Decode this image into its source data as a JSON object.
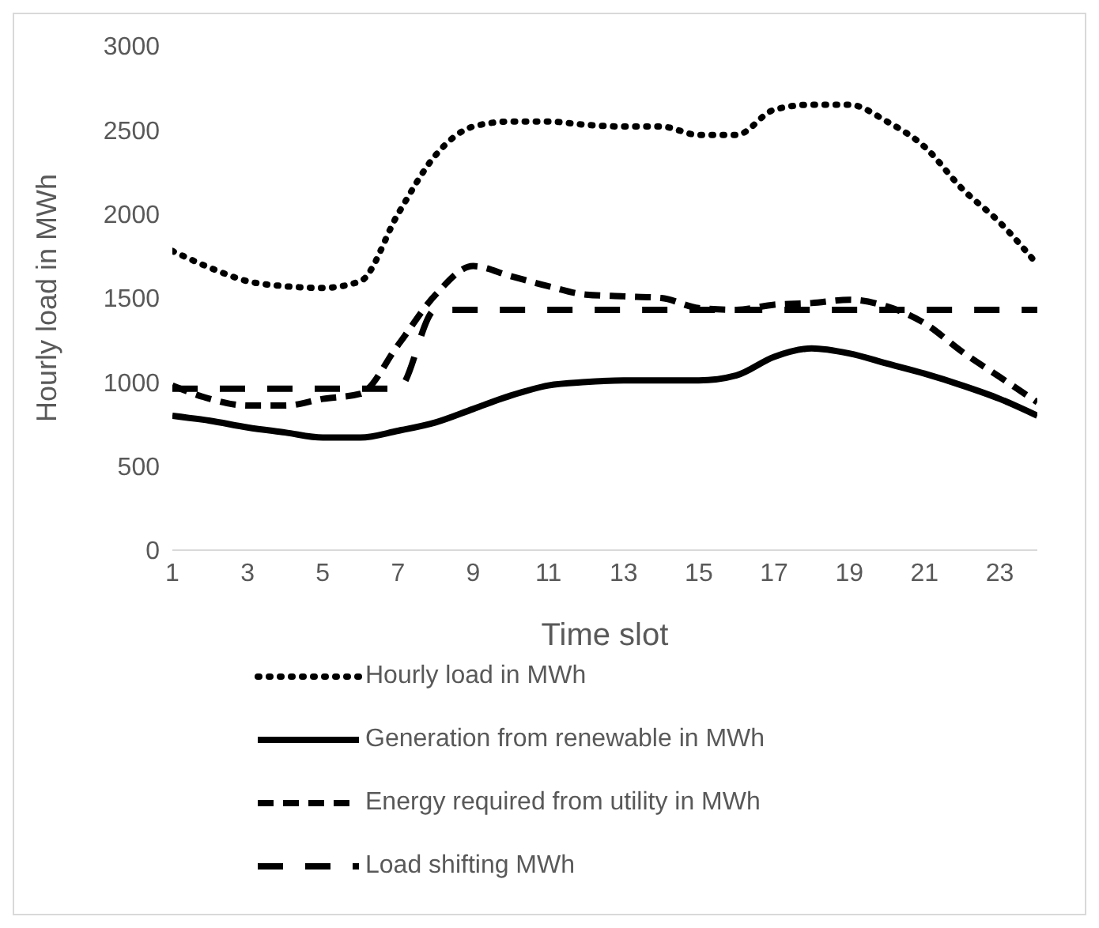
{
  "chart_data": {
    "type": "line",
    "xlabel": "Time slot",
    "ylabel": "Hourly load in MWh",
    "x": [
      1,
      2,
      3,
      4,
      5,
      6,
      7,
      8,
      9,
      10,
      11,
      12,
      13,
      14,
      15,
      16,
      17,
      18,
      19,
      20,
      21,
      22,
      23,
      24
    ],
    "xlim": [
      1,
      24
    ],
    "xticks": [
      1,
      3,
      5,
      7,
      9,
      11,
      13,
      15,
      17,
      19,
      21,
      23
    ],
    "ylim": [
      0,
      3000
    ],
    "yticks": [
      0,
      500,
      1000,
      1500,
      2000,
      2500,
      3000
    ],
    "grid": false,
    "legend": "bottom",
    "marker": "none",
    "series": [
      {
        "name": "Hourly load in MWh",
        "color": "#000000",
        "line_style": "dotted",
        "values": [
          1780,
          1680,
          1600,
          1570,
          1560,
          1600,
          2000,
          2350,
          2520,
          2550,
          2550,
          2530,
          2520,
          2520,
          2470,
          2470,
          2620,
          2650,
          2650,
          2550,
          2400,
          2150,
          1950,
          1700
        ]
      },
      {
        "name": "Generation from renewable in MWh",
        "color": "#000000",
        "line_style": "solid",
        "values": [
          800,
          770,
          730,
          700,
          670,
          670,
          710,
          760,
          840,
          920,
          980,
          1000,
          1010,
          1010,
          1010,
          1040,
          1150,
          1200,
          1170,
          1110,
          1050,
          980,
          900,
          800
        ]
      },
      {
        "name": "Energy required from utility in MWh",
        "color": "#000000",
        "line_style": "dashed",
        "values": [
          980,
          900,
          860,
          860,
          900,
          930,
          1220,
          1520,
          1690,
          1630,
          1570,
          1520,
          1510,
          1500,
          1440,
          1430,
          1460,
          1470,
          1490,
          1450,
          1350,
          1180,
          1030,
          880
        ]
      },
      {
        "name": "Load shifting MWh",
        "color": "#000000",
        "line_style": "longdash",
        "values": [
          960,
          960,
          960,
          960,
          960,
          960,
          960,
          1430,
          1430,
          1430,
          1430,
          1430,
          1430,
          1430,
          1430,
          1430,
          1430,
          1430,
          1430,
          1430,
          1430,
          1430,
          1430,
          1430
        ]
      }
    ]
  }
}
